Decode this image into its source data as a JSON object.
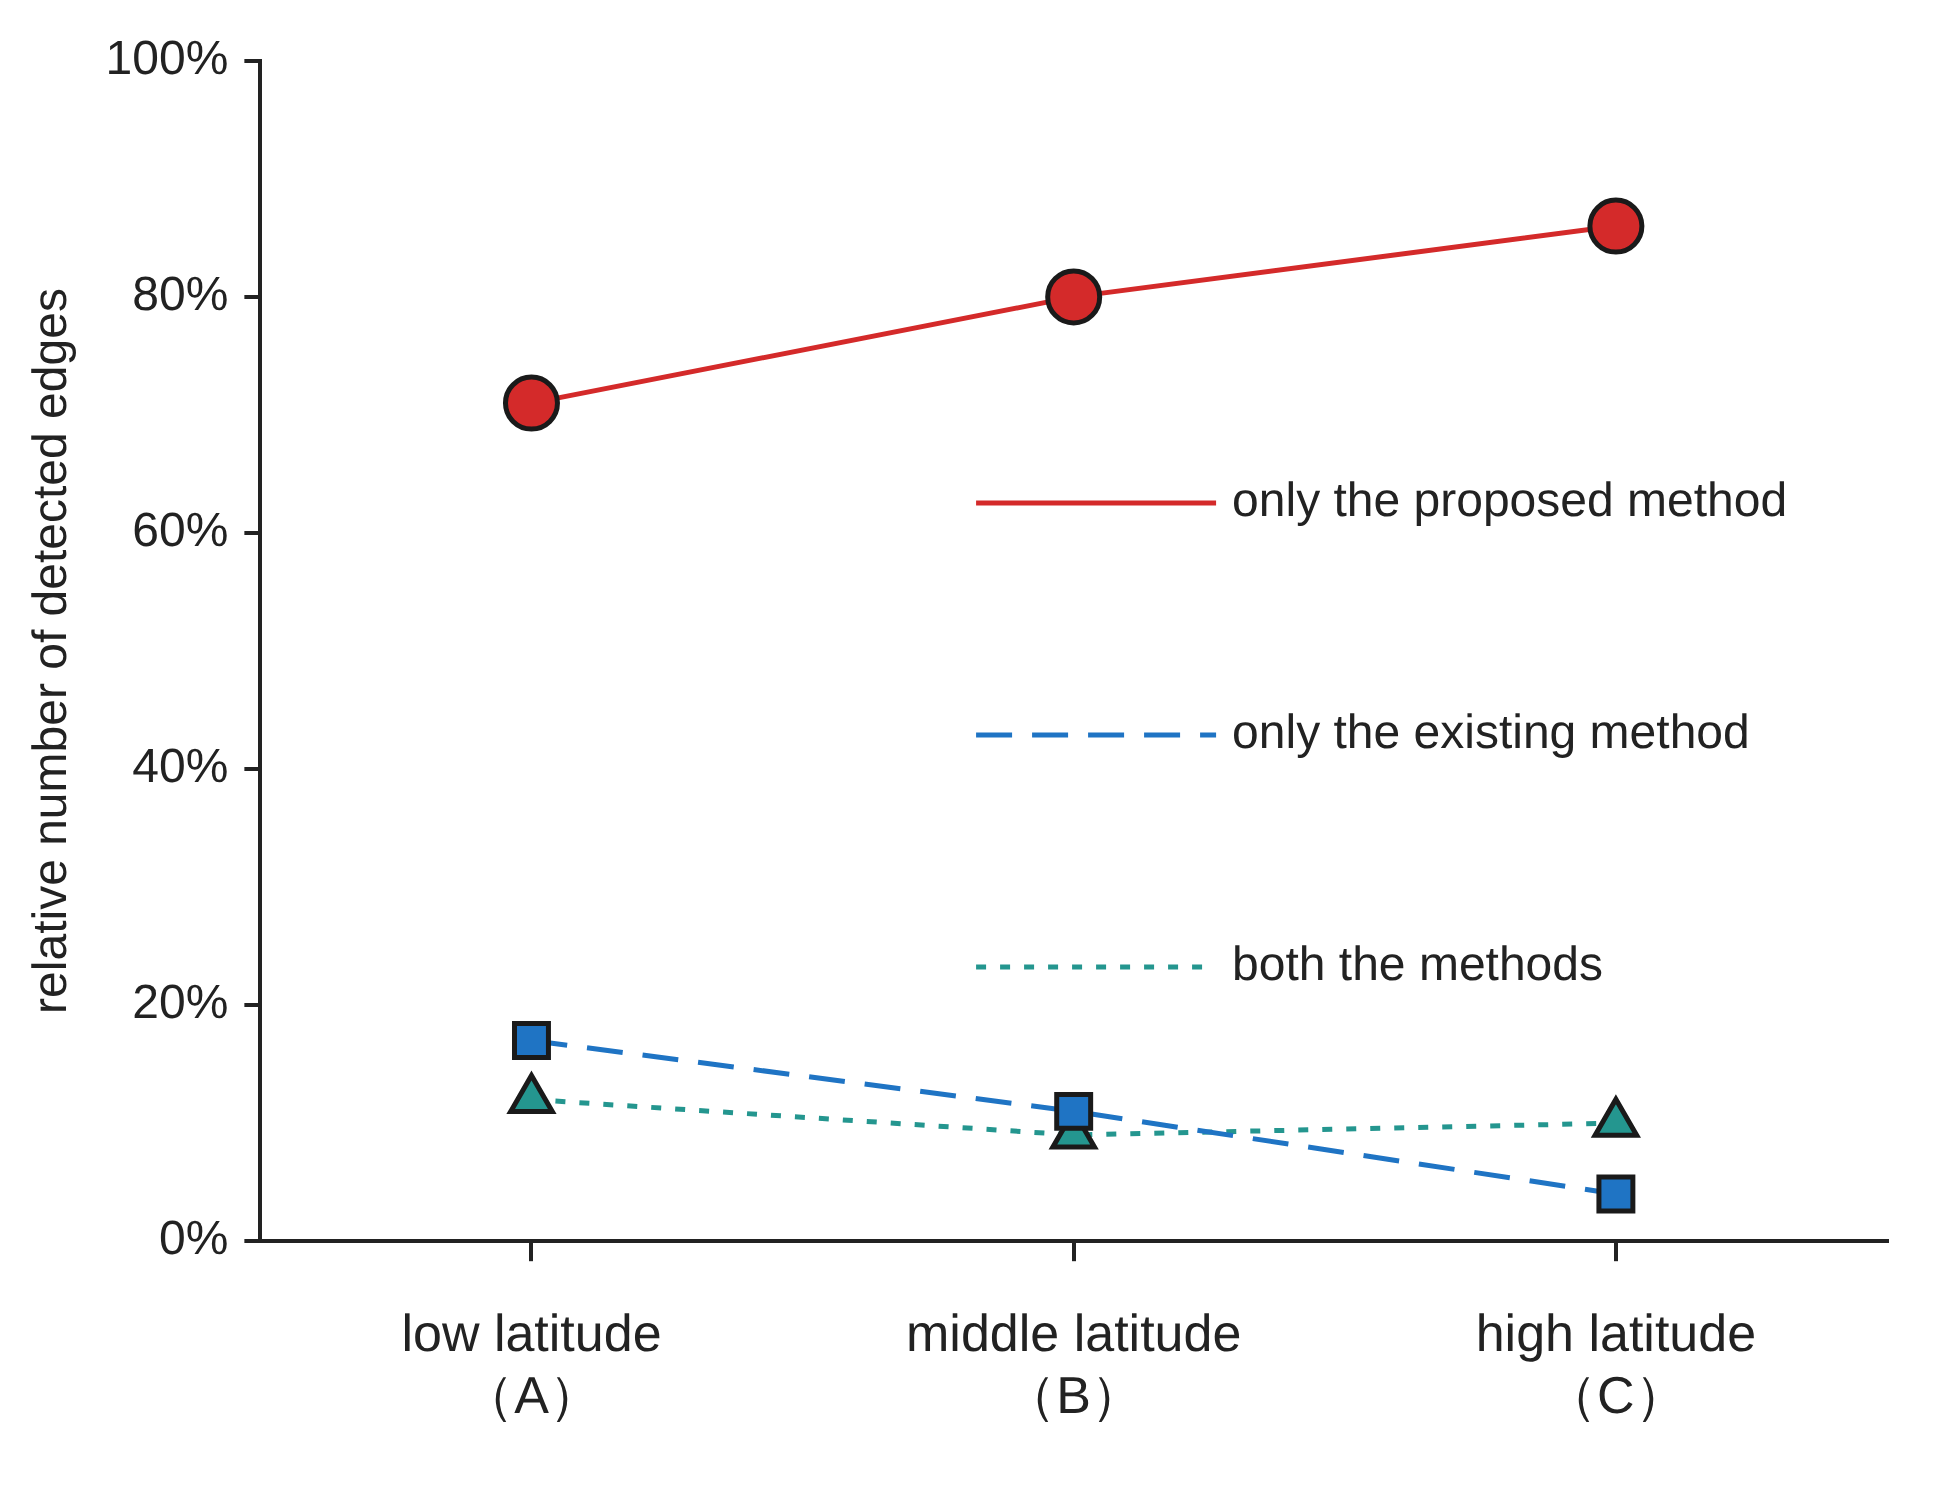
{
  "chart_data": {
    "type": "line",
    "ylabel": "relative number of detected edges",
    "categories": [
      "low latitude\n（A）",
      "middle latitude\n（B）",
      "high latitude\n（C）"
    ],
    "series": [
      {
        "name": "only the proposed method",
        "color": "#d42a2a",
        "values": [
          71,
          80,
          86
        ],
        "marker": "circle",
        "line_style": "solid"
      },
      {
        "name": "only the existing method",
        "color": "#1f74c4",
        "values": [
          17,
          11,
          4
        ],
        "marker": "square",
        "line_style": "dashed"
      },
      {
        "name": "both the methods",
        "color": "#24968f",
        "values": [
          12,
          9,
          10
        ],
        "marker": "triangle",
        "line_style": "dotted"
      }
    ],
    "ylim": [
      0,
      100
    ],
    "yticks": [
      {
        "value": 0,
        "label": "0%"
      },
      {
        "value": 20,
        "label": "20%"
      },
      {
        "value": 40,
        "label": "40%"
      },
      {
        "value": 60,
        "label": "60%"
      },
      {
        "value": 80,
        "label": "80%"
      },
      {
        "value": 100,
        "label": "100%"
      }
    ],
    "grid": false,
    "legend": "right"
  }
}
